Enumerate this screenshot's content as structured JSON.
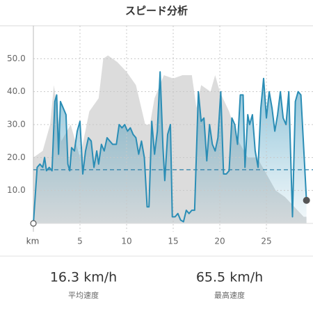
{
  "chart_data": {
    "type": "line",
    "title": "スピード分析",
    "xlabel": "km",
    "xlim": [
      0,
      29.7
    ],
    "ylim": [
      0,
      60
    ],
    "xticks": [
      5,
      10,
      15,
      20,
      25
    ],
    "yticks": [
      {
        "value": 10,
        "label": "10.0"
      },
      {
        "value": 20,
        "label": "20.0"
      },
      {
        "value": 30,
        "label": "30.0"
      },
      {
        "value": 40,
        "label": "40.0"
      },
      {
        "value": 50,
        "label": "50.0"
      }
    ],
    "grid": true,
    "series": [
      {
        "color": "#dcdcdc",
        "fill": true,
        "x": [
          0,
          1,
          1.8,
          2.2,
          3,
          4,
          5,
          6,
          7,
          7.5,
          8,
          9,
          10,
          11,
          12,
          12.5,
          13,
          14,
          15,
          16,
          17,
          17.5,
          18,
          19,
          19.5,
          20,
          21,
          22,
          23,
          24,
          25,
          26,
          27,
          28,
          29,
          29.3
        ],
        "values": [
          20,
          22,
          30,
          42,
          25,
          30,
          20,
          34,
          38,
          50,
          51,
          49,
          46,
          42,
          30,
          30,
          38,
          45,
          44,
          45,
          45,
          35,
          42,
          40,
          45,
          40,
          34,
          25,
          20,
          20,
          15,
          10,
          8,
          5,
          2,
          2
        ]
      },
      {
        "color": "#2a8db5",
        "fill": true,
        "x": [
          0,
          0.4,
          0.7,
          1.0,
          1.2,
          1.4,
          1.7,
          2.0,
          2.3,
          2.5,
          2.7,
          2.9,
          3.2,
          3.5,
          3.7,
          3.9,
          4.1,
          4.4,
          4.7,
          5.0,
          5.3,
          5.6,
          5.9,
          6.2,
          6.5,
          6.8,
          7.0,
          7.3,
          7.6,
          7.9,
          8.2,
          8.5,
          8.9,
          9.2,
          9.5,
          9.8,
          10.1,
          10.4,
          10.7,
          11.0,
          11.3,
          11.6,
          11.9,
          12.2,
          12.4,
          12.7,
          13.0,
          13.3,
          13.6,
          13.9,
          14.1,
          14.4,
          14.7,
          14.9,
          15.2,
          15.5,
          15.8,
          16.1,
          16.4,
          16.7,
          17.0,
          17.3,
          17.7,
          18.0,
          18.3,
          18.6,
          18.9,
          19.2,
          19.5,
          19.8,
          20.1,
          20.4,
          20.7,
          21.0,
          21.3,
          21.6,
          21.9,
          22.2,
          22.5,
          22.7,
          23.0,
          23.2,
          23.5,
          23.8,
          24.1,
          24.4,
          24.7,
          25.0,
          25.3,
          25.6,
          25.9,
          26.2,
          26.5,
          26.8,
          27.1,
          27.4,
          27.8,
          28.1,
          28.4,
          28.7,
          29.3
        ],
        "values": [
          0,
          17,
          18,
          17,
          20,
          16,
          17,
          16,
          37,
          39,
          21,
          37,
          35,
          33,
          18,
          16,
          23,
          22,
          28,
          31,
          15,
          22,
          26,
          25,
          17,
          22,
          18,
          24,
          22,
          26,
          25,
          24,
          24,
          30,
          29,
          30,
          28,
          29,
          27,
          26,
          21,
          25,
          20,
          5,
          5,
          31,
          21,
          28,
          46,
          23,
          13,
          27,
          30,
          2,
          2,
          3,
          1,
          0.5,
          4,
          3,
          4,
          4,
          40,
          31,
          32,
          19,
          30,
          24,
          22,
          26,
          40,
          15,
          15,
          16,
          32,
          30,
          24,
          39,
          39,
          17,
          33,
          30,
          33,
          22,
          17,
          35,
          44,
          32,
          40,
          35,
          28,
          33,
          40,
          32,
          30,
          40,
          2,
          37,
          40,
          39,
          7
        ]
      }
    ],
    "average": {
      "value": 16.3,
      "label": "16.3 km/h",
      "caption": "平均速度"
    },
    "maximum": {
      "label": "65.5 km/h",
      "caption": "最高速度"
    }
  }
}
